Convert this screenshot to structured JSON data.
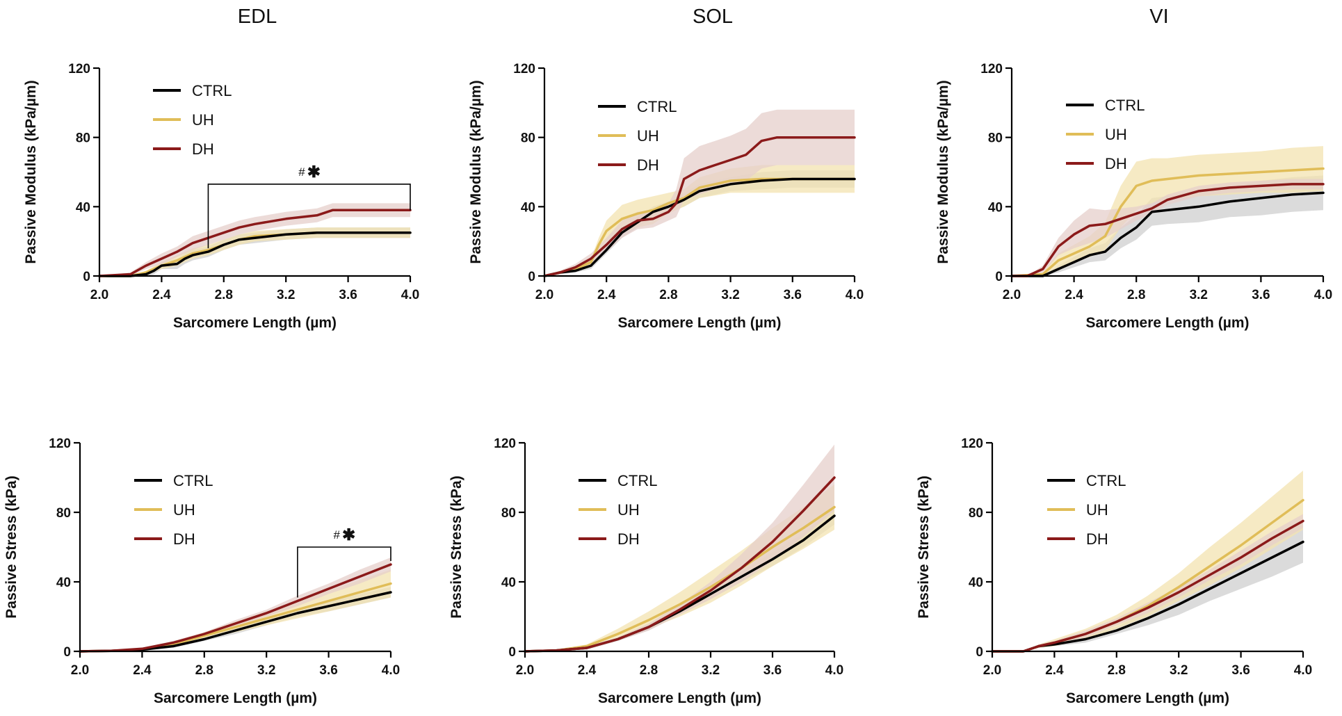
{
  "titles": [
    "EDL",
    "SOL",
    "VI"
  ],
  "colors": {
    "CTRL": "#000000",
    "UH": "#e0bd58",
    "DH": "#8b1a1a",
    "CTRL_band": "#cfcfcf",
    "UH_band": "#f3e3b0",
    "DH_band": "#e6cfcb"
  },
  "legend_labels": [
    "CTRL",
    "UH",
    "DH"
  ],
  "chart_data": [
    {
      "id": "edl-modulus",
      "column": "EDL",
      "type": "line",
      "title": "EDL",
      "xlabel": "Sarcomere Length (µm)",
      "ylabel": "Passive Modulus (kPa/µm)",
      "xlim": [
        2.0,
        4.0
      ],
      "ylim": [
        0,
        120
      ],
      "xticks": [
        "2.0",
        "2.4",
        "2.8",
        "3.2",
        "3.6",
        "4.0"
      ],
      "yticks": [
        "0",
        "40",
        "80",
        "120"
      ],
      "series": [
        {
          "name": "CTRL",
          "x": [
            2.0,
            2.2,
            2.3,
            2.35,
            2.4,
            2.5,
            2.55,
            2.6,
            2.7,
            2.8,
            2.9,
            3.0,
            3.2,
            3.4,
            3.6,
            3.8,
            4.0
          ],
          "y": [
            0,
            0,
            1,
            3,
            6,
            7,
            10,
            12,
            14,
            18,
            21,
            22,
            24,
            25,
            25,
            25,
            25
          ],
          "band": [
            0,
            0,
            1,
            2,
            2,
            3,
            3,
            3,
            3,
            3,
            3,
            3,
            3,
            3,
            3,
            3,
            3
          ]
        },
        {
          "name": "UH",
          "x": [
            2.0,
            2.2,
            2.3,
            2.4,
            2.5,
            2.6,
            2.7,
            2.8,
            2.9,
            3.0,
            3.2,
            3.4,
            3.6,
            3.8,
            4.0
          ],
          "y": [
            0,
            0,
            2,
            6,
            9,
            13,
            15,
            18,
            21,
            23,
            24,
            25,
            25,
            25,
            25
          ],
          "band": [
            0,
            0,
            1,
            2,
            3,
            3,
            3,
            3,
            3,
            3,
            3,
            3,
            3,
            3,
            3
          ]
        },
        {
          "name": "DH",
          "x": [
            2.0,
            2.2,
            2.3,
            2.4,
            2.5,
            2.6,
            2.7,
            2.8,
            2.9,
            3.0,
            3.2,
            3.4,
            3.5,
            3.6,
            3.8,
            4.0
          ],
          "y": [
            0,
            1,
            6,
            10,
            14,
            19,
            22,
            25,
            28,
            30,
            33,
            35,
            38,
            38,
            38,
            38
          ],
          "band": [
            0,
            1,
            2,
            3,
            3,
            4,
            4,
            4,
            4,
            4,
            4,
            4,
            4,
            4,
            4,
            4
          ]
        }
      ],
      "annotation": {
        "label": "#",
        "star": "✱",
        "x1": 2.7,
        "x2": 4.0,
        "y": 53,
        "y1_end": 16,
        "y2_end": 38
      }
    },
    {
      "id": "sol-modulus",
      "column": "SOL",
      "type": "line",
      "title": "SOL",
      "xlabel": "Sarcomere Length (µm)",
      "ylabel": "Passive Modulus (kPa/µm)",
      "xlim": [
        2.0,
        4.0
      ],
      "ylim": [
        0,
        120
      ],
      "xticks": [
        "2.0",
        "2.4",
        "2.8",
        "3.2",
        "3.6",
        "4.0"
      ],
      "yticks": [
        "0",
        "40",
        "80",
        "120"
      ],
      "series": [
        {
          "name": "CTRL",
          "x": [
            2.0,
            2.1,
            2.2,
            2.3,
            2.4,
            2.5,
            2.6,
            2.7,
            2.8,
            2.9,
            3.0,
            3.2,
            3.4,
            3.6,
            3.8,
            4.0
          ],
          "y": [
            0,
            2,
            3,
            6,
            15,
            25,
            31,
            37,
            40,
            44,
            49,
            53,
            55,
            56,
            56,
            56
          ],
          "band": [
            0,
            1,
            1,
            2,
            2,
            3,
            3,
            3,
            3,
            4,
            4,
            4,
            5,
            5,
            5,
            5
          ]
        },
        {
          "name": "UH",
          "x": [
            2.0,
            2.1,
            2.2,
            2.3,
            2.35,
            2.4,
            2.5,
            2.6,
            2.7,
            2.8,
            2.9,
            3.0,
            3.2,
            3.4,
            3.6,
            3.8,
            4.0
          ],
          "y": [
            0,
            2,
            4,
            8,
            18,
            26,
            33,
            36,
            38,
            42,
            45,
            51,
            55,
            56,
            56,
            56,
            56
          ],
          "band": [
            0,
            1,
            1,
            2,
            4,
            6,
            8,
            8,
            8,
            6,
            5,
            6,
            7,
            8,
            8,
            8,
            8
          ]
        },
        {
          "name": "DH",
          "x": [
            2.0,
            2.1,
            2.2,
            2.3,
            2.4,
            2.5,
            2.6,
            2.7,
            2.8,
            2.85,
            2.9,
            3.0,
            3.1,
            3.2,
            3.3,
            3.4,
            3.5,
            3.6,
            3.8,
            4.0
          ],
          "y": [
            0,
            2,
            5,
            10,
            18,
            27,
            32,
            33,
            37,
            42,
            56,
            61,
            64,
            67,
            70,
            78,
            80,
            80,
            80,
            80
          ],
          "band": [
            0,
            1,
            2,
            3,
            4,
            5,
            5,
            5,
            5,
            8,
            12,
            14,
            14,
            14,
            15,
            16,
            16,
            16,
            16,
            16
          ]
        }
      ]
    },
    {
      "id": "vi-modulus",
      "column": "VI",
      "type": "line",
      "title": "VI",
      "xlabel": "Sarcomere Length (µm)",
      "ylabel": "Passive Modulus (kPa/µm)",
      "xlim": [
        2.0,
        4.0
      ],
      "ylim": [
        0,
        120
      ],
      "xticks": [
        "2.0",
        "2.4",
        "2.8",
        "3.2",
        "3.6",
        "4.0"
      ],
      "yticks": [
        "0",
        "40",
        "80",
        "120"
      ],
      "series": [
        {
          "name": "CTRL",
          "x": [
            2.0,
            2.2,
            2.3,
            2.4,
            2.5,
            2.6,
            2.7,
            2.8,
            2.9,
            3.0,
            3.2,
            3.4,
            3.6,
            3.8,
            4.0
          ],
          "y": [
            0,
            0,
            4,
            8,
            12,
            14,
            22,
            28,
            37,
            38,
            40,
            43,
            45,
            47,
            48
          ],
          "band": [
            0,
            0,
            2,
            3,
            4,
            5,
            6,
            7,
            8,
            8,
            9,
            9,
            10,
            10,
            10
          ]
        },
        {
          "name": "UH",
          "x": [
            2.0,
            2.2,
            2.3,
            2.4,
            2.5,
            2.6,
            2.7,
            2.8,
            2.9,
            3.0,
            3.2,
            3.4,
            3.6,
            3.8,
            4.0
          ],
          "y": [
            0,
            1,
            9,
            13,
            17,
            23,
            40,
            52,
            55,
            56,
            58,
            59,
            60,
            61,
            62
          ],
          "band": [
            0,
            1,
            4,
            5,
            6,
            8,
            12,
            14,
            13,
            12,
            12,
            12,
            12,
            13,
            13
          ]
        },
        {
          "name": "DH",
          "x": [
            2.0,
            2.1,
            2.2,
            2.3,
            2.4,
            2.5,
            2.6,
            2.7,
            2.8,
            2.9,
            3.0,
            3.2,
            3.4,
            3.6,
            3.8,
            4.0
          ],
          "y": [
            0,
            0,
            4,
            17,
            24,
            29,
            30,
            33,
            36,
            39,
            44,
            49,
            51,
            52,
            53,
            53
          ],
          "band": [
            0,
            0,
            2,
            5,
            8,
            10,
            8,
            6,
            4,
            3,
            3,
            3,
            3,
            3,
            3,
            3
          ]
        }
      ]
    },
    {
      "id": "edl-stress",
      "column": "EDL",
      "type": "line",
      "xlabel": "Sarcomere Length (µm)",
      "ylabel": "Passive Stress (kPa)",
      "xlim": [
        2.0,
        4.0
      ],
      "ylim": [
        0,
        120
      ],
      "xticks": [
        "2.0",
        "2.4",
        "2.8",
        "3.2",
        "3.6",
        "4.0"
      ],
      "yticks": [
        "0",
        "40",
        "80",
        "120"
      ],
      "series": [
        {
          "name": "CTRL",
          "x": [
            2.0,
            2.2,
            2.4,
            2.6,
            2.8,
            3.0,
            3.2,
            3.4,
            3.6,
            3.8,
            4.0
          ],
          "y": [
            0,
            0.3,
            1,
            3,
            7,
            12,
            17,
            22,
            26,
            30,
            34
          ],
          "band": [
            0,
            0,
            0.5,
            1,
            1,
            2,
            2,
            2,
            3,
            3,
            3
          ]
        },
        {
          "name": "UH",
          "x": [
            2.0,
            2.2,
            2.4,
            2.6,
            2.8,
            3.0,
            3.2,
            3.4,
            3.6,
            3.8,
            4.0
          ],
          "y": [
            0,
            0.3,
            1,
            4,
            9,
            14,
            19,
            24,
            29,
            34,
            39
          ],
          "band": [
            0,
            0,
            0.5,
            1,
            2,
            3,
            4,
            5,
            6,
            7,
            8
          ]
        },
        {
          "name": "DH",
          "x": [
            2.0,
            2.2,
            2.4,
            2.6,
            2.8,
            3.0,
            3.2,
            3.4,
            3.6,
            3.8,
            4.0
          ],
          "y": [
            0,
            0.3,
            1.5,
            5,
            10,
            16,
            22,
            29,
            36,
            43,
            50
          ],
          "band": [
            0,
            0,
            0.5,
            1,
            1,
            2,
            2,
            3,
            3,
            4,
            4
          ]
        }
      ],
      "annotation": {
        "label": "#",
        "star": "✱",
        "x1": 3.4,
        "x2": 4.0,
        "y": 60,
        "y1_end": 31,
        "y2_end": 52
      }
    },
    {
      "id": "sol-stress",
      "column": "SOL",
      "type": "line",
      "xlabel": "Sarcomere Length (µm)",
      "ylabel": "Passive Stress (kPa)",
      "xlim": [
        2.0,
        4.0
      ],
      "ylim": [
        0,
        120
      ],
      "xticks": [
        "2.0",
        "2.4",
        "2.8",
        "3.2",
        "3.6",
        "4.0"
      ],
      "yticks": [
        "0",
        "40",
        "80",
        "120"
      ],
      "series": [
        {
          "name": "CTRL",
          "x": [
            2.0,
            2.2,
            2.4,
            2.6,
            2.8,
            3.0,
            3.2,
            3.4,
            3.6,
            3.8,
            4.0
          ],
          "y": [
            0,
            0.5,
            2,
            7,
            14,
            23,
            33,
            43,
            53,
            64,
            78
          ],
          "band": [
            0,
            0,
            1,
            1,
            2,
            2,
            3,
            3,
            4,
            4,
            5
          ]
        },
        {
          "name": "UH",
          "x": [
            2.0,
            2.2,
            2.4,
            2.6,
            2.8,
            3.0,
            3.2,
            3.4,
            3.6,
            3.8,
            4.0
          ],
          "y": [
            0,
            0.5,
            3,
            10,
            18,
            27,
            37,
            48,
            60,
            71,
            83
          ],
          "band": [
            0,
            0,
            1,
            3,
            5,
            7,
            9,
            10,
            11,
            12,
            13
          ]
        },
        {
          "name": "DH",
          "x": [
            2.0,
            2.2,
            2.4,
            2.6,
            2.8,
            3.0,
            3.2,
            3.4,
            3.6,
            3.8,
            4.0
          ],
          "y": [
            0,
            0.5,
            2,
            7,
            14,
            24,
            35,
            48,
            63,
            81,
            100
          ],
          "band": [
            0,
            0,
            1,
            1,
            2,
            3,
            5,
            8,
            11,
            15,
            19
          ]
        }
      ]
    },
    {
      "id": "vi-stress",
      "column": "VI",
      "type": "line",
      "xlabel": "Sarcomere Length (µm)",
      "ylabel": "Passive Stress (kPa)",
      "xlim": [
        2.0,
        4.0
      ],
      "ylim": [
        0,
        120
      ],
      "xticks": [
        "2.0",
        "2.4",
        "2.8",
        "3.2",
        "3.6",
        "4.0"
      ],
      "yticks": [
        "0",
        "40",
        "80",
        "120"
      ],
      "series": [
        {
          "name": "CTRL",
          "x": [
            2.0,
            2.2,
            2.3,
            2.4,
            2.6,
            2.8,
            3.0,
            3.2,
            3.4,
            3.6,
            3.8,
            4.0
          ],
          "y": [
            0,
            0,
            3,
            4,
            7,
            12,
            19,
            27,
            36,
            45,
            54,
            63
          ],
          "band": [
            0,
            0,
            1,
            1,
            2,
            2,
            4,
            6,
            7,
            9,
            11,
            12
          ]
        },
        {
          "name": "UH",
          "x": [
            2.0,
            2.2,
            2.3,
            2.4,
            2.6,
            2.8,
            3.0,
            3.2,
            3.4,
            3.6,
            3.8,
            4.0
          ],
          "y": [
            0,
            0,
            3,
            5,
            10,
            17,
            26,
            37,
            49,
            61,
            74,
            87
          ],
          "band": [
            0,
            0,
            1,
            2,
            3,
            4,
            6,
            8,
            11,
            13,
            15,
            17
          ]
        },
        {
          "name": "DH",
          "x": [
            2.0,
            2.2,
            2.3,
            2.4,
            2.6,
            2.8,
            3.0,
            3.2,
            3.4,
            3.6,
            3.8,
            4.0
          ],
          "y": [
            0,
            0,
            3,
            5,
            10,
            17,
            25,
            34,
            44,
            54,
            65,
            75
          ],
          "band": [
            0,
            0,
            1,
            1,
            2,
            2,
            3,
            3,
            3,
            4,
            4,
            4
          ]
        }
      ]
    }
  ]
}
